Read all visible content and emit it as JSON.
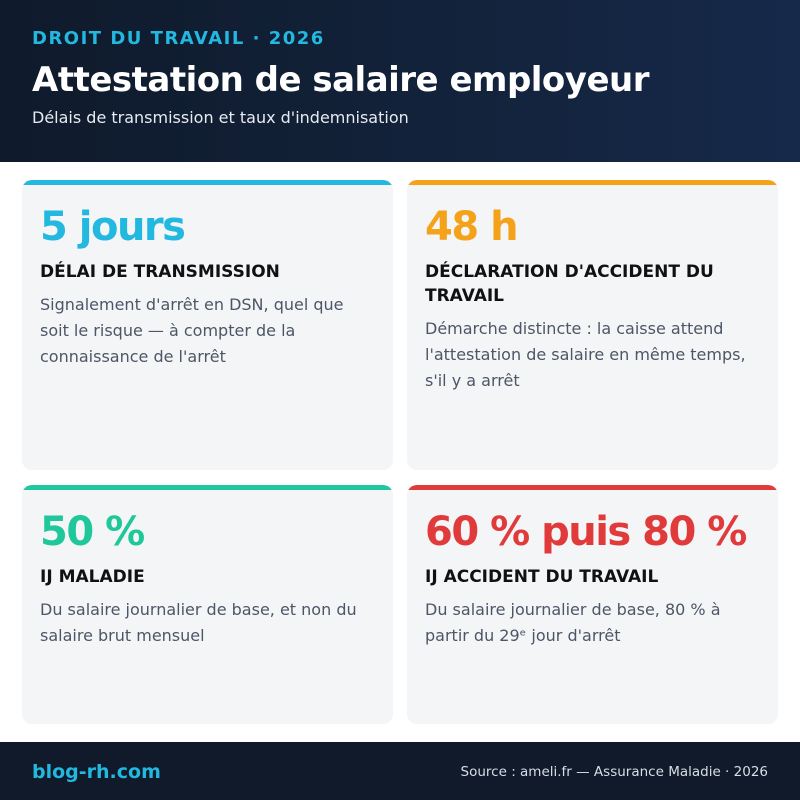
{
  "header": {
    "kicker": "DROIT DU TRAVAIL · 2026",
    "title": "Attestation de salaire employeur",
    "subtitle": "Délais de transmission et taux d'indemnisation"
  },
  "cards": [
    {
      "value": "5 jours",
      "label": "DÉLAI DE TRANSMISSION",
      "description": "Signalement d'arrêt en DSN, quel que soit le risque — à compter de la connaissance de l'arrêt",
      "accent": "#22b8e0"
    },
    {
      "value": "48 h",
      "label": "DÉCLARATION D'ACCIDENT DU TRAVAIL",
      "description": "Démarche distincte : la caisse attend l'attestation de salaire en même temps, s'il y a arrêt",
      "accent": "#f5a21b"
    },
    {
      "value": "50 %",
      "label": "IJ MALADIE",
      "description": "Du salaire journalier de base, et non du salaire brut mensuel",
      "accent": "#1fc79a"
    },
    {
      "value": "60 % puis 80 %",
      "label": "IJ ACCIDENT DU TRAVAIL",
      "description": "Du salaire journalier de base, 80 % à partir du 29ᵉ jour d'arrêt",
      "accent": "#e03a3a"
    }
  ],
  "footer": {
    "brand": "blog-rh.com",
    "source": "Source : ameli.fr — Assurance Maladie · 2026"
  }
}
